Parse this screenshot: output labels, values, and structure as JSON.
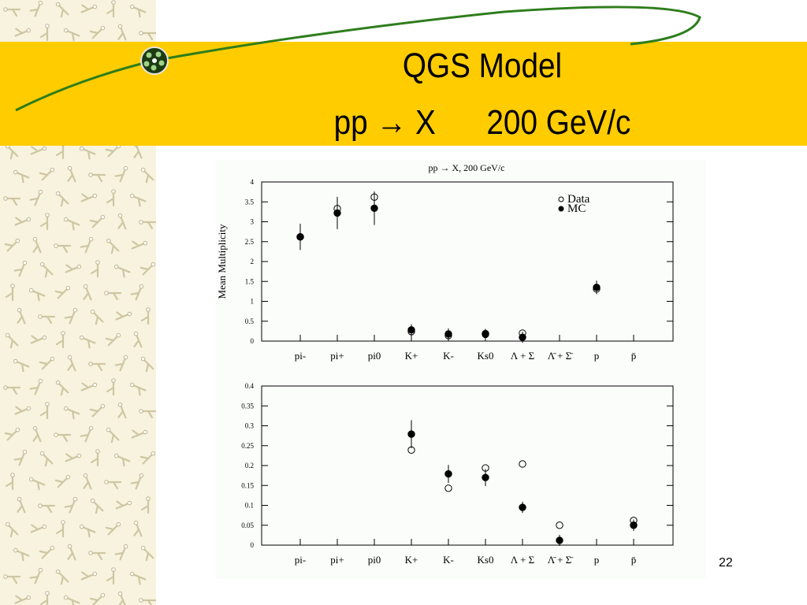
{
  "slide": {
    "title": "QGS Model",
    "subtitle_prefix": "pp",
    "subtitle_arrow": "→",
    "subtitle_x": "X",
    "subtitle_energy": "200 GeV/c",
    "page_number": "22"
  },
  "colors": {
    "banner": "#ffcc00",
    "sidebar": "#f7f3df",
    "curve": "#2e7d1c",
    "figure_bg": "#fbfdfb"
  },
  "chart_data": [
    {
      "type": "scatter",
      "title": "pp → X, 200 GeV/c",
      "ylabel": "Mean Multiplicity",
      "xlabel": "",
      "categories": [
        "pi-",
        "pi+",
        "pi0",
        "K+",
        "K-",
        "Ks0",
        "Λ + Σ",
        "Λ̄ + Σ̄",
        "p",
        "p̄"
      ],
      "ylim": [
        0,
        4
      ],
      "yticks": [
        "0",
        "0.5",
        "1",
        "1.5",
        "2",
        "2.5",
        "3",
        "3.5",
        "4"
      ],
      "legend": [
        "Data",
        "MC"
      ],
      "legend_position": "top-right",
      "series": [
        {
          "name": "Data",
          "marker": "open",
          "values": [
            2.62,
            3.33,
            3.62,
            0.24,
            0.14,
            0.19,
            0.2,
            null,
            1.31,
            null
          ]
        },
        {
          "name": "MC",
          "marker": "filled",
          "values": [
            2.62,
            3.22,
            3.34,
            0.28,
            0.18,
            0.17,
            0.095,
            null,
            1.35,
            null
          ]
        }
      ]
    },
    {
      "type": "scatter",
      "ylabel": "",
      "xlabel": "",
      "categories": [
        "pi-",
        "pi+",
        "pi0",
        "K+",
        "K-",
        "Ks0",
        "Λ + Σ",
        "Λ̄ + Σ̄",
        "p",
        "p̄"
      ],
      "ylim": [
        0,
        0.4
      ],
      "yticks": [
        "0",
        "0.05",
        "0.1",
        "0.15",
        "0.2",
        "0.25",
        "0.3",
        "0.35",
        "0.4"
      ],
      "series": [
        {
          "name": "Data",
          "marker": "open",
          "values": [
            null,
            null,
            null,
            0.239,
            0.143,
            0.194,
            0.204,
            0.05,
            null,
            0.062
          ]
        },
        {
          "name": "MC",
          "marker": "filled",
          "values": [
            null,
            null,
            null,
            0.279,
            0.179,
            0.17,
            0.095,
            0.012,
            null,
            0.05
          ]
        }
      ]
    }
  ]
}
